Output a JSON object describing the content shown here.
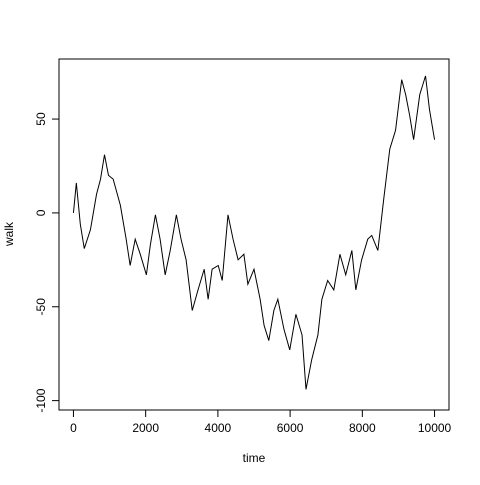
{
  "chart_data": {
    "type": "line",
    "x_label": "time",
    "y_label": "walk",
    "x": [
      0,
      80,
      190,
      300,
      470,
      640,
      750,
      860,
      970,
      1100,
      1300,
      1460,
      1570,
      1710,
      1850,
      2020,
      2130,
      2270,
      2400,
      2540,
      2680,
      2850,
      2980,
      3120,
      3290,
      3450,
      3620,
      3730,
      3840,
      4010,
      4120,
      4280,
      4420,
      4560,
      4720,
      4830,
      5000,
      5170,
      5280,
      5410,
      5550,
      5660,
      5830,
      5990,
      6160,
      6330,
      6440,
      6600,
      6770,
      6880,
      7040,
      7210,
      7380,
      7540,
      7710,
      7820,
      7980,
      8150,
      8260,
      8430,
      8590,
      8760,
      8920,
      9090,
      9200,
      9310,
      9420,
      9590,
      9750,
      9860,
      10000
    ],
    "series": [
      {
        "color": "#000000",
        "values": [
          0,
          16,
          -6,
          -19,
          -9,
          10,
          18,
          31,
          20,
          18,
          4,
          -14,
          -28,
          -14,
          -22,
          -33,
          -17,
          -1,
          -14,
          -33,
          -20,
          -1,
          -14,
          -25,
          -52,
          -41,
          -30,
          -46,
          -30,
          -28,
          -36,
          -1,
          -14,
          -25,
          -22,
          -38,
          -30,
          -46,
          -60,
          -68,
          -52,
          -46,
          -62,
          -73,
          -54,
          -65,
          -94,
          -78,
          -65,
          -46,
          -36,
          -41,
          -22,
          -33,
          -20,
          -41,
          -25,
          -14,
          -12,
          -20,
          7,
          34,
          44,
          71,
          63,
          52,
          39,
          63,
          73,
          55,
          39
        ]
      }
    ],
    "xlim": [
      -400,
      10400
    ],
    "ylim": [
      -105,
      82
    ],
    "xticks": [
      0,
      2000,
      4000,
      6000,
      8000,
      10000
    ],
    "yticks": [
      -100,
      -50,
      0,
      50
    ]
  }
}
